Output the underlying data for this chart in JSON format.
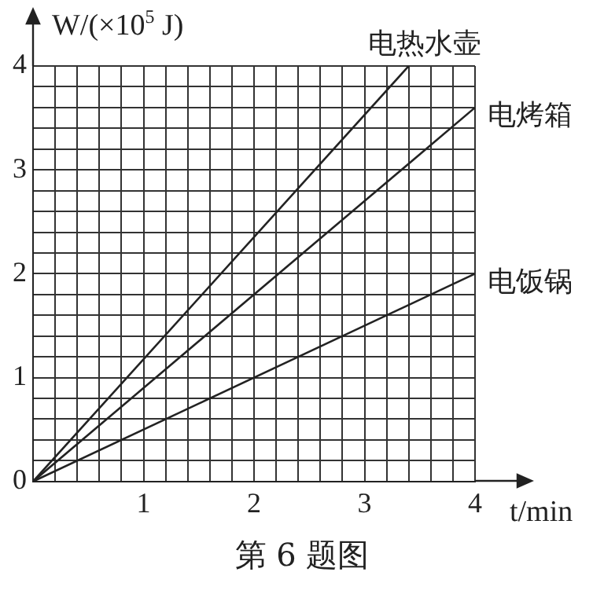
{
  "chart_data": {
    "type": "line",
    "xlabel": "t/min",
    "ylabel": "W/(×10$^{5}$ J)",
    "annotations": [
      "第 6 题图"
    ],
    "series": [
      {
        "name": "电热水壶",
        "color": "#222222",
        "x": [
          0,
          3.4
        ],
        "values": [
          0,
          4
        ]
      },
      {
        "name": "电烤箱",
        "color": "#222222",
        "x": [
          0,
          4
        ],
        "values": [
          0,
          3.6
        ]
      },
      {
        "name": "电饭锅",
        "color": "#222222",
        "x": [
          0,
          4
        ],
        "values": [
          0,
          2
        ]
      }
    ],
    "xlim": [
      0,
      4
    ],
    "ylim": [
      0,
      4
    ],
    "xticks": [
      {
        "value": 0,
        "label": null
      },
      {
        "value": 0.2,
        "label": null
      },
      {
        "value": 0.4,
        "label": null
      },
      {
        "value": 0.6,
        "label": null
      },
      {
        "value": 0.8,
        "label": null
      },
      1,
      {
        "value": 1.2,
        "label": null
      },
      {
        "value": 1.4,
        "label": null
      },
      {
        "value": 1.6,
        "label": null
      },
      {
        "value": 1.8,
        "label": null
      },
      2,
      {
        "value": 2.2,
        "label": null
      },
      {
        "value": 2.4,
        "label": null
      },
      {
        "value": 2.6,
        "label": null
      },
      {
        "value": 2.8,
        "label": null
      },
      3,
      {
        "value": 3.2,
        "label": null
      },
      {
        "value": 3.4,
        "label": null
      },
      {
        "value": 3.6,
        "label": null
      },
      {
        "value": 3.8,
        "label": null
      },
      4
    ],
    "yticks": [
      0,
      {
        "value": 0.2,
        "label": null
      },
      {
        "value": 0.4,
        "label": null
      },
      {
        "value": 0.6,
        "label": null
      },
      {
        "value": 0.8,
        "label": null
      },
      1,
      {
        "value": 1.2,
        "label": null
      },
      {
        "value": 1.4,
        "label": null
      },
      {
        "value": 1.6,
        "label": null
      },
      {
        "value": 1.8,
        "label": null
      },
      2,
      {
        "value": 2.2,
        "label": null
      },
      {
        "value": 2.4,
        "label": null
      },
      {
        "value": 2.6,
        "label": null
      },
      {
        "value": 2.8,
        "label": null
      },
      3,
      {
        "value": 3.2,
        "label": null
      },
      {
        "value": 3.4,
        "label": null
      },
      {
        "value": 3.6,
        "label": null
      },
      {
        "value": 3.8,
        "label": null
      },
      4
    ],
    "grid": true,
    "legend": false,
    "marker": "none",
    "line_style": "solid"
  }
}
